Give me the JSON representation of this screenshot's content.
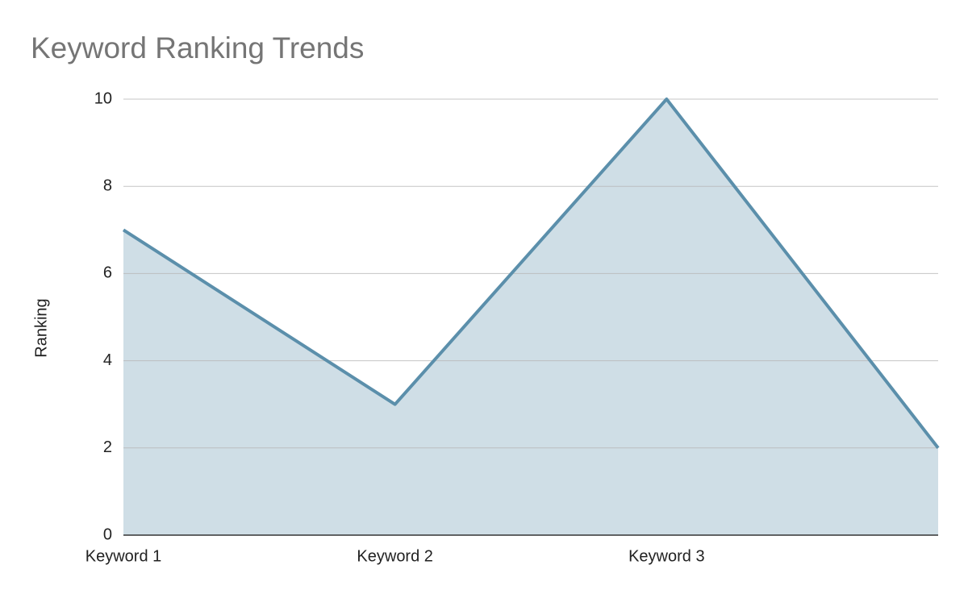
{
  "chart_data": {
    "type": "area",
    "title": "Keyword Ranking Trends",
    "ylabel": "Ranking",
    "categories": [
      "Keyword 1",
      "Keyword 2",
      "Keyword 3",
      null
    ],
    "values": [
      7,
      3,
      10,
      2
    ],
    "color": "#5b8fab",
    "fill_color": "#cfdee6",
    "ylim": [
      0,
      10
    ],
    "yticks": [
      0,
      2,
      4,
      6,
      8,
      10
    ],
    "grid": true
  }
}
